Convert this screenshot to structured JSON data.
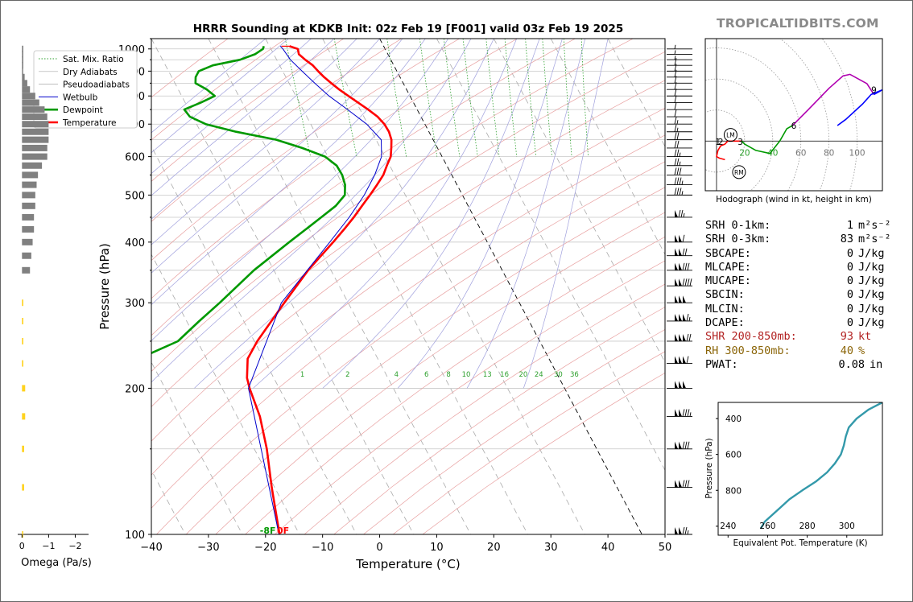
{
  "brand": "TROPICALTIDBITS.COM",
  "title": "HRRR Sounding at KDKB Init: 02z Feb 19 [F001] valid 03z Feb 19 2025",
  "chart_data": [
    {
      "type": "line",
      "name": "skew-t",
      "xlabel": "Temperature (°C)",
      "ylabel": "Pressure (hPa)",
      "xlim": [
        -40,
        50
      ],
      "ylim": [
        1050,
        100
      ],
      "x_ticks": [
        -40,
        -30,
        -20,
        -10,
        0,
        10,
        20,
        30,
        40,
        50
      ],
      "x_tick_labels": [
        "−40",
        "−30",
        "−20",
        "−10",
        "0",
        "10",
        "20",
        "30",
        "40",
        "50"
      ],
      "y_ticks": [
        100,
        200,
        300,
        400,
        500,
        600,
        700,
        800,
        900,
        1000
      ],
      "skew_c_per_decade": 45,
      "legend": {
        "placement": "top-left",
        "entries": [
          {
            "label": "Sat. Mix. Ratio",
            "color": "#2ca02c",
            "style": "dotted"
          },
          {
            "label": "Dry Adiabats",
            "color": "#e08080",
            "style": "solid-thin"
          },
          {
            "label": "Pseudoadiabats",
            "color": "#8080d0",
            "style": "solid-thin"
          },
          {
            "label": "Wetbulb",
            "color": "#0000cc",
            "style": "solid"
          },
          {
            "label": "Dewpoint",
            "color": "#009900",
            "style": "thick"
          },
          {
            "label": "Temperature",
            "color": "#ff0000",
            "style": "thick"
          }
        ]
      },
      "series": [
        {
          "name": "Temperature",
          "color": "#ff0000",
          "points": [
            [
              1013,
              -16.5
            ],
            [
              1000,
              -15.3
            ],
            [
              975,
              -15.6
            ],
            [
              950,
              -15
            ],
            [
              925,
              -14.2
            ],
            [
              900,
              -13.8
            ],
            [
              875,
              -13.3
            ],
            [
              850,
              -12.6
            ],
            [
              825,
              -11.8
            ],
            [
              800,
              -10.8
            ],
            [
              775,
              -9.7
            ],
            [
              750,
              -8.6
            ],
            [
              725,
              -7.6
            ],
            [
              700,
              -7.1
            ],
            [
              675,
              -7
            ],
            [
              650,
              -7.3
            ],
            [
              625,
              -8.1
            ],
            [
              600,
              -9
            ],
            [
              575,
              -10.5
            ],
            [
              550,
              -12
            ],
            [
              525,
              -14
            ],
            [
              500,
              -16.2
            ],
            [
              475,
              -18.6
            ],
            [
              450,
              -21.1
            ],
            [
              425,
              -23.9
            ],
            [
              400,
              -27
            ],
            [
              350,
              -34
            ],
            [
              300,
              -41.2
            ],
            [
              250,
              -49.5
            ],
            [
              230,
              -52.8
            ],
            [
              210,
              -54.7
            ],
            [
              200,
              -55.2
            ],
            [
              175,
              -56
            ],
            [
              150,
              -57.8
            ],
            [
              125,
              -60.5
            ],
            [
              100,
              -63.5
            ]
          ]
        },
        {
          "name": "Dewpoint",
          "color": "#009900",
          "points": [
            [
              1013,
              -21
            ],
            [
              1000,
              -21.4
            ],
            [
              975,
              -23.3
            ],
            [
              950,
              -26.4
            ],
            [
              925,
              -31.7
            ],
            [
              900,
              -34.7
            ],
            [
              875,
              -35.8
            ],
            [
              850,
              -36.4
            ],
            [
              825,
              -35
            ],
            [
              800,
              -34.2
            ],
            [
              775,
              -37.3
            ],
            [
              750,
              -40.8
            ],
            [
              725,
              -40.5
            ],
            [
              700,
              -38.4
            ],
            [
              675,
              -33.8
            ],
            [
              650,
              -27.5
            ],
            [
              625,
              -23.7
            ],
            [
              600,
              -20.5
            ],
            [
              575,
              -19.3
            ],
            [
              550,
              -19.2
            ],
            [
              525,
              -19.6
            ],
            [
              500,
              -20.6
            ],
            [
              475,
              -23.2
            ],
            [
              450,
              -26.8
            ],
            [
              425,
              -30.6
            ],
            [
              400,
              -34.7
            ],
            [
              350,
              -43.5
            ],
            [
              300,
              -52.5
            ],
            [
              275,
              -57.8
            ],
            [
              250,
              -63.4
            ],
            [
              230,
              -71.9
            ],
            [
              200,
              -76
            ],
            [
              175,
              -78.7
            ],
            [
              150,
              -81.8
            ],
            [
              125,
              -85.3
            ],
            [
              100,
              -89.5
            ]
          ]
        },
        {
          "name": "Wetbulb",
          "color": "#0000cc",
          "points": [
            [
              1013,
              -18.1
            ],
            [
              1000,
              -17.9
            ],
            [
              950,
              -17.6
            ],
            [
              900,
              -16.6
            ],
            [
              850,
              -15.5
            ],
            [
              800,
              -14.2
            ],
            [
              750,
              -12.2
            ],
            [
              700,
              -10.2
            ],
            [
              650,
              -9.1
            ],
            [
              600,
              -10.6
            ],
            [
              550,
              -13.5
            ],
            [
              500,
              -17.2
            ],
            [
              450,
              -21.9
            ],
            [
              400,
              -27.6
            ],
            [
              300,
              -41.7
            ],
            [
              200,
              -55.4
            ],
            [
              100,
              -63.6
            ]
          ]
        }
      ],
      "surface_labels": [
        {
          "text": "-8F",
          "color": "#009900"
        },
        {
          "text": "0F",
          "color": "#ff0000"
        }
      ],
      "mix_ratio_labels": [
        "1",
        "2",
        "4",
        "6",
        "8",
        "10",
        "13",
        "16",
        "20",
        "24",
        "30",
        "36"
      ],
      "mix_ratio_values": [
        1,
        2,
        4,
        6,
        8,
        10,
        13,
        16,
        20,
        24,
        30,
        36
      ],
      "wind_barb_levels": [
        100,
        125,
        150,
        175,
        200,
        225,
        250,
        275,
        300,
        325,
        350,
        375,
        400,
        450,
        500,
        525,
        550,
        575,
        600,
        625,
        650,
        675,
        700,
        725,
        750,
        775,
        800,
        825,
        850,
        875,
        900,
        925,
        950,
        975,
        1000
      ],
      "wind_barb_speeds_kt": [
        125,
        130,
        130,
        135,
        150,
        160,
        170,
        165,
        150,
        140,
        130,
        120,
        110,
        75,
        35,
        35,
        30,
        25,
        25,
        20,
        20,
        15,
        15,
        10,
        10,
        10,
        10,
        10,
        10,
        10,
        10,
        10,
        5,
        5,
        5
      ]
    },
    {
      "type": "bar",
      "name": "omega",
      "xlabel": "Omega (Pa/s)",
      "xlim": [
        0.1,
        -2.5
      ],
      "x_ticks": [
        0,
        -1,
        -2
      ],
      "x_tick_labels": [
        "0",
        "−1",
        "−2"
      ],
      "levels": [
        1000,
        975,
        950,
        925,
        900,
        875,
        850,
        825,
        800,
        775,
        750,
        725,
        700,
        675,
        650,
        625,
        600,
        575,
        550,
        525,
        500,
        475,
        450,
        425,
        400,
        375,
        350,
        300,
        275,
        250,
        225,
        200,
        175,
        150,
        125,
        100
      ],
      "values": [
        -0.05,
        -0.05,
        -0.05,
        -0.05,
        -0.03,
        -0.1,
        -0.2,
        -0.3,
        -0.5,
        -0.65,
        -0.85,
        -0.95,
        -1.0,
        -1.0,
        -1.0,
        -0.95,
        -0.95,
        -0.75,
        -0.6,
        -0.55,
        -0.5,
        -0.5,
        -0.45,
        -0.45,
        -0.4,
        -0.35,
        -0.3,
        0.0,
        0.0,
        0.0,
        0.0,
        0.0,
        0.0,
        0.0,
        0.0,
        0.0
      ],
      "dgz_band": [
        {
          "level": 300,
          "value": -0.05
        },
        {
          "level": 275,
          "value": -0.05
        },
        {
          "level": 250,
          "value": -0.05
        },
        {
          "level": 225,
          "value": -0.05
        },
        {
          "level": 200,
          "value": -0.12
        },
        {
          "level": 175,
          "value": -0.12
        },
        {
          "level": 150,
          "value": -0.08
        },
        {
          "level": 125,
          "value": -0.08
        },
        {
          "level": 100,
          "value": -0.03
        }
      ],
      "colors": {
        "bar": "#808080",
        "dgz": "#ffd21e"
      }
    },
    {
      "type": "line",
      "name": "hodograph",
      "xlabel": "Hodograph (wind in kt, height in km)",
      "xlim": [
        -8,
        118
      ],
      "ylim": [
        -32,
        66
      ],
      "ring_labels": [
        "20",
        "40",
        "60",
        "80",
        "100"
      ],
      "ring_values": [
        20,
        40,
        60,
        80,
        100
      ],
      "height_labels": [
        "1",
        "2",
        "3",
        "6",
        "9"
      ],
      "height_label_points": [
        [
          1,
          8
        ],
        [
          3,
          8
        ],
        [
          17,
          8
        ],
        [
          55,
          8
        ],
        [
          112,
          31
        ]
      ],
      "storm_motion": [
        {
          "label": "LM",
          "u": 10,
          "v": 4
        },
        {
          "label": "RM",
          "u": 16,
          "v": -20
        }
      ],
      "segments": [
        {
          "color": "#ff0000",
          "points": [
            [
              6,
              -12
            ],
            [
              2,
              -11
            ],
            [
              0,
              -10
            ],
            [
              1,
              -6
            ],
            [
              3,
              -3
            ],
            [
              6,
              -2
            ],
            [
              8,
              0
            ],
            [
              14,
              0
            ],
            [
              18,
              0
            ]
          ]
        },
        {
          "color": "#009900",
          "points": [
            [
              18,
              0
            ],
            [
              20,
              -2
            ],
            [
              28,
              -6
            ],
            [
              38,
              -8
            ],
            [
              45,
              0
            ],
            [
              50,
              8
            ],
            [
              54,
              10
            ]
          ]
        },
        {
          "color": "#b000b0",
          "points": [
            [
              54,
              10
            ],
            [
              65,
              20
            ],
            [
              80,
              34
            ],
            [
              90,
              42
            ],
            [
              95,
              43
            ],
            [
              107,
              37
            ],
            [
              112,
              30
            ]
          ]
        },
        {
          "color": "#0000ff",
          "points": [
            [
              112,
              30
            ],
            [
              118,
              33
            ],
            [
              110,
              30
            ],
            [
              104,
              24
            ],
            [
              92,
              14
            ],
            [
              86,
              10
            ]
          ]
        }
      ]
    },
    {
      "type": "line",
      "name": "theta-e",
      "xlabel": "Equivalent Pot. Temperature (K)",
      "ylabel": "Pressure (hPa)",
      "xlim": [
        235,
        318
      ],
      "ylim": [
        1050,
        310
      ],
      "x_ticks": [
        240,
        260,
        280,
        300
      ],
      "x_tick_labels": [
        "240",
        "260",
        "280",
        "300"
      ],
      "y_ticks": [
        400,
        600,
        800,
        1000
      ],
      "y_tick_labels": [
        "400",
        "600",
        "800",
        "1000"
      ],
      "color": "#3399aa",
      "points": [
        [
          1013,
          256.5
        ],
        [
          975,
          258.5
        ],
        [
          950,
          261
        ],
        [
          900,
          266
        ],
        [
          850,
          271
        ],
        [
          800,
          277.5
        ],
        [
          750,
          284.5
        ],
        [
          700,
          290
        ],
        [
          650,
          294
        ],
        [
          600,
          297
        ],
        [
          550,
          298.5
        ],
        [
          500,
          299.5
        ],
        [
          450,
          301
        ],
        [
          400,
          305
        ],
        [
          350,
          311
        ],
        [
          310,
          318
        ]
      ]
    }
  ],
  "stats": [
    {
      "label": "SRH 0-1km:",
      "value": "1",
      "unit": "m²s⁻²",
      "color": "#000000"
    },
    {
      "label": "SRH 0-3km:",
      "value": "83",
      "unit": "m²s⁻²",
      "color": "#000000"
    },
    {
      "label": "SBCAPE:",
      "value": "0",
      "unit": "J/kg",
      "color": "#000000"
    },
    {
      "label": "MLCAPE:",
      "value": "0",
      "unit": "J/kg",
      "color": "#000000"
    },
    {
      "label": "MUCAPE:",
      "value": "0",
      "unit": "J/kg",
      "color": "#000000"
    },
    {
      "label": "SBCIN:",
      "value": "0",
      "unit": "J/kg",
      "color": "#000000"
    },
    {
      "label": "MLCIN:",
      "value": "0",
      "unit": "J/kg",
      "color": "#000000"
    },
    {
      "label": "DCAPE:",
      "value": "0",
      "unit": "J/kg",
      "color": "#000000"
    },
    {
      "label": "SHR 200-850mb:",
      "value": "93",
      "unit": "kt",
      "color": "#b22222"
    },
    {
      "label": "RH 300-850mb:",
      "value": "40",
      "unit": "%",
      "color": "#8b6508"
    },
    {
      "label": "PWAT:",
      "value": "0.08",
      "unit": "in",
      "color": "#000000"
    }
  ]
}
